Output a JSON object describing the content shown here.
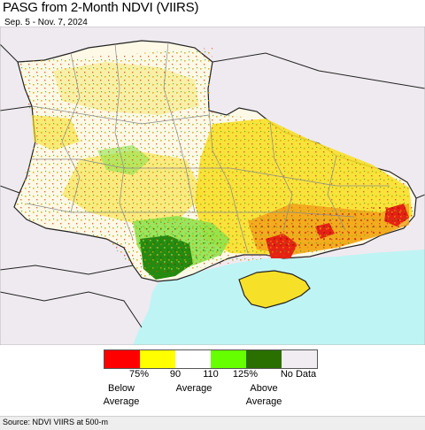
{
  "title": "PASG from 2-Month NDVI (VIIRS)",
  "subtitle": "Sep. 5 - Nov. 7, 2024",
  "legend": {
    "colors": [
      "#ff0000",
      "#ffff00",
      "#ffffff",
      "#66ff00",
      "#2a7000",
      "#f0ecf2"
    ],
    "ticks": [
      "75%",
      "90",
      "110",
      "125%",
      "No Data"
    ],
    "below_line1": "Below",
    "below_line2": "Average",
    "average": "Average",
    "above_line1": "Above",
    "above_line2": "Average"
  },
  "map_colors": {
    "sea": "#bff4f4",
    "outside": "#efeaf0",
    "land": "#fdf9e6",
    "yellow": "#f7e028",
    "orange": "#f0a21c",
    "red": "#e42214",
    "lightgreen": "#8ee24c",
    "darkgreen": "#258a10",
    "border": "#222222",
    "admin": "#8a8a8a"
  },
  "source": "Source: NDVI VIIRS at 500-m"
}
